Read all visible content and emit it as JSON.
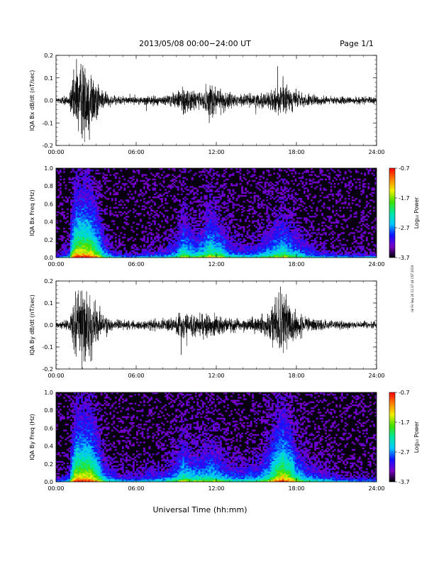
{
  "header": {
    "date_range": "2013/05/08  00:00−24:00 UT",
    "page": "Page 1/1"
  },
  "footer": {
    "xlabel": "Universal Time (hh:mm)",
    "side_stamp": "ral Fri Sep 20 11:37:44 CST 2019"
  },
  "colors": {
    "trace": "#000000",
    "spec_bg": "#07000d",
    "colormap": [
      "#000000",
      "#7a00c8",
      "#1010ff",
      "#00c8ff",
      "#00e8a0",
      "#40e000",
      "#f0f000",
      "#ff8000",
      "#ff0000"
    ]
  },
  "chart_data": [
    {
      "type": "line",
      "panel": "bx-waveform",
      "ylabel": "IQA Bx dB/dt (nT/sec)",
      "xlim": [
        0,
        24
      ],
      "ylim": [
        -0.2,
        0.2
      ],
      "xticks": [
        "00:00",
        "06:00",
        "12:00",
        "18:00",
        "24:00"
      ],
      "yticks": [
        "-0.2",
        "-0.1",
        "0.0",
        "0.1",
        "0.2"
      ],
      "x_hours": [
        0,
        1,
        1.5,
        2,
        2.5,
        3,
        3.5,
        4,
        5,
        6,
        7,
        8,
        9,
        9.5,
        10,
        10.5,
        11,
        11.5,
        12,
        12.5,
        13,
        14,
        15,
        16,
        16.5,
        17,
        17.5,
        18,
        18.5,
        19,
        20,
        21,
        22,
        23,
        24
      ],
      "amplitude": [
        0.015,
        0.03,
        0.2,
        0.2,
        0.2,
        0.12,
        0.05,
        0.03,
        0.02,
        0.02,
        0.025,
        0.025,
        0.04,
        0.08,
        0.06,
        0.05,
        0.06,
        0.1,
        0.08,
        0.06,
        0.04,
        0.03,
        0.035,
        0.05,
        0.07,
        0.08,
        0.06,
        0.05,
        0.04,
        0.03,
        0.025,
        0.02,
        0.02,
        0.02,
        0.02
      ]
    },
    {
      "type": "heatmap",
      "panel": "bx-spectrogram",
      "ylabel": "IQA Bx Freq (Hz)",
      "xlim": [
        0,
        24
      ],
      "ylim": [
        0,
        1
      ],
      "xticks": [
        "00:00",
        "06:00",
        "12:00",
        "18:00",
        "24:00"
      ],
      "yticks": [
        "0.0",
        "0.2",
        "0.4",
        "0.6",
        "0.8",
        "1.0"
      ],
      "colorbar": {
        "label": "Log₁₀ Power",
        "range": [
          -3.7,
          -0.7
        ],
        "ticks": [
          "-0.7",
          "-1.7",
          "-2.7",
          "-3.7"
        ]
      }
    },
    {
      "type": "line",
      "panel": "by-waveform",
      "ylabel": "IQA By dB/dt (nT/sec)",
      "xlim": [
        0,
        24
      ],
      "ylim": [
        -0.2,
        0.2
      ],
      "xticks": [
        "00:00",
        "06:00",
        "12:00",
        "18:00",
        "24:00"
      ],
      "yticks": [
        "-0.2",
        "-0.1",
        "0.0",
        "0.1",
        "0.2"
      ],
      "x_hours": [
        0,
        1,
        1.5,
        2,
        2.5,
        3,
        3.5,
        4,
        5,
        6,
        7,
        8,
        9,
        9.5,
        10,
        10.5,
        11,
        11.5,
        12,
        12.5,
        13,
        14,
        15,
        16,
        16.5,
        17,
        17.5,
        18,
        18.5,
        19,
        20,
        21,
        22,
        23,
        24
      ],
      "amplitude": [
        0.015,
        0.03,
        0.2,
        0.2,
        0.2,
        0.12,
        0.05,
        0.035,
        0.025,
        0.025,
        0.03,
        0.03,
        0.05,
        0.08,
        0.06,
        0.06,
        0.06,
        0.07,
        0.06,
        0.05,
        0.04,
        0.035,
        0.04,
        0.07,
        0.15,
        0.2,
        0.14,
        0.07,
        0.05,
        0.04,
        0.03,
        0.025,
        0.02,
        0.02,
        0.02
      ]
    },
    {
      "type": "heatmap",
      "panel": "by-spectrogram",
      "ylabel": "IQA By Freq (Hz)",
      "xlim": [
        0,
        24
      ],
      "ylim": [
        0,
        1
      ],
      "xticks": [
        "00:00",
        "06:00",
        "12:00",
        "18:00",
        "24:00"
      ],
      "yticks": [
        "0.0",
        "0.2",
        "0.4",
        "0.6",
        "0.8",
        "1.0"
      ],
      "colorbar": {
        "label": "Log₁₀ Power",
        "range": [
          -3.7,
          -0.7
        ],
        "ticks": [
          "-0.7",
          "-1.7",
          "-2.7",
          "-3.7"
        ]
      }
    }
  ]
}
